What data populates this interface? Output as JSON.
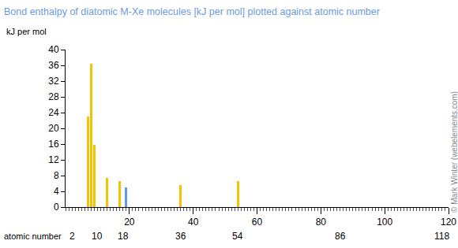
{
  "chart_data": {
    "type": "bar",
    "title": "Bond enthalpy of diatomic M-Xe molecules [kJ per mol] plotted against atomic number",
    "y_label": "kJ per mol",
    "x_label": "atomic number",
    "credit": "© Mark Winter (webelements.com)",
    "x": [
      7,
      8,
      9,
      13,
      17,
      19,
      36,
      54
    ],
    "values": [
      23,
      36.4,
      15.8,
      7.4,
      6.6,
      5.0,
      5.6,
      6.6
    ],
    "colors": [
      "#f5c400",
      "#f5c400",
      "#f5c400",
      "#f5c400",
      "#f5c400",
      "#5b9be6",
      "#f5c400",
      "#f5c400"
    ],
    "xlim": [
      0,
      120
    ],
    "xticks": [
      20,
      40,
      60,
      80,
      100,
      120
    ],
    "group_ticks": [
      2,
      10,
      18,
      36,
      54,
      86,
      118
    ],
    "ylim": [
      0,
      40
    ],
    "yticks": [
      0,
      4,
      8,
      12,
      16,
      20,
      24,
      28,
      32,
      36,
      40
    ],
    "grid": false
  }
}
